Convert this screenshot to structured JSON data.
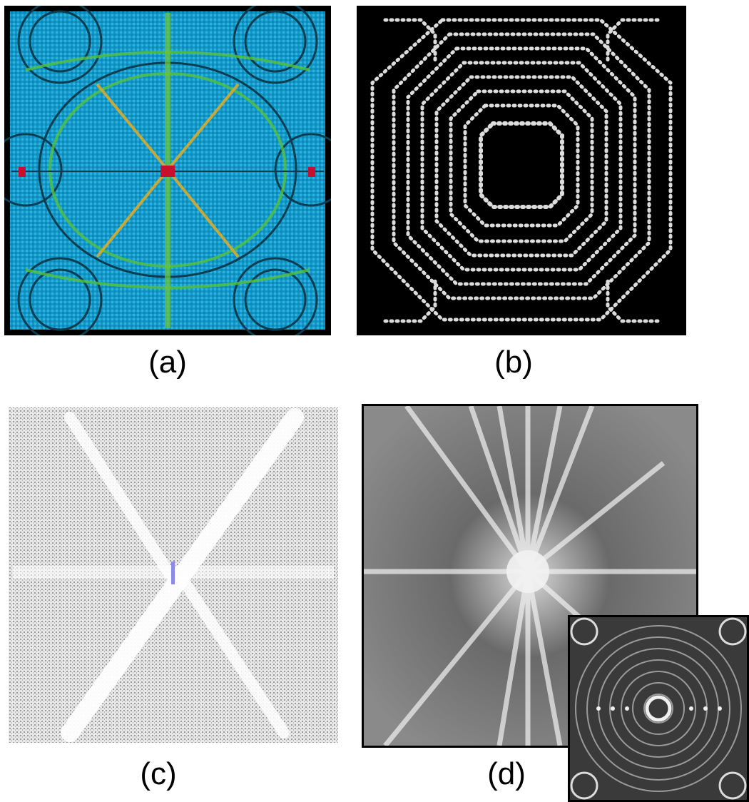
{
  "captions": {
    "a": "(a)",
    "b": "(b)",
    "c": "(c)",
    "d": "(d)"
  },
  "panels": {
    "a": {
      "description_colors": [
        "#1aa7d6",
        "#3fbf4a",
        "#d4b020",
        "#c8102e"
      ]
    },
    "b": {
      "description_colors": [
        "#000000",
        "#e6e6e6"
      ]
    },
    "c": {
      "description_colors": [
        "#ffffff",
        "#555555",
        "#8a8ae8"
      ]
    },
    "d": {
      "description_colors": [
        "#3a3a3a",
        "#f0f0f0"
      ]
    }
  }
}
